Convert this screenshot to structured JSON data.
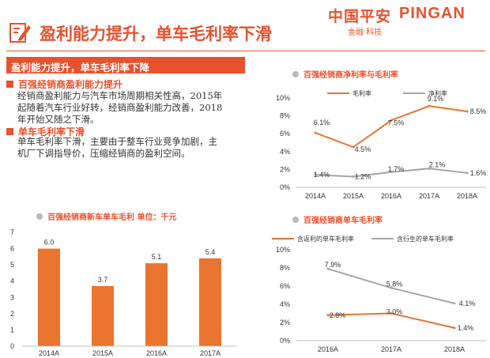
{
  "brand": {
    "cn": "中国平安",
    "en": "PINGAN",
    "sub": "金融·科技"
  },
  "header": {
    "title": "盈利能力提升，单车毛利率下滑"
  },
  "banner": {
    "label": "盈利能力提升，单车毛利率下降"
  },
  "sections": [
    {
      "heading": "百强经销商盈利能力提升",
      "lines": [
        "经销商盈利能力与汽车市场周期相关性高，2015年",
        "起随着汽车行业好转，经销商盈利能力改善，2018",
        "年开始又随之下滑。"
      ]
    },
    {
      "heading": "单车毛利率下滑",
      "lines": [
        "单车毛利率下滑，主要由于整车行业竞争加剧，主",
        "机厂下调指导价，压缩经销商的盈利空间。"
      ]
    }
  ],
  "chart_data": [
    {
      "type": "line",
      "title": "百强经销商净利率与毛利率",
      "x": [
        "2014A",
        "2015A",
        "2016A",
        "2017A",
        "2018A"
      ],
      "series": [
        {
          "name": "毛利率",
          "values": [
            6.1,
            4.5,
            7.5,
            9.1,
            8.5
          ],
          "color": "#e8742f"
        },
        {
          "name": "净利率",
          "values": [
            1.4,
            1.2,
            1.7,
            2.1,
            1.6
          ],
          "color": "#a6a6a6"
        }
      ],
      "labels": [
        [
          "6.1%",
          "4.5%",
          "7.5%",
          "9.1%",
          "8.5%"
        ],
        [
          "1.4%",
          "1.2%",
          "1.7%",
          "2.1%",
          "1.6%"
        ]
      ],
      "ylim": [
        0,
        10
      ],
      "yticks": [
        "0%",
        "2%",
        "4%",
        "6%",
        "8%",
        "10%"
      ]
    },
    {
      "type": "bar",
      "title": "百强经销商新车单车毛利 单位：千元",
      "categories": [
        "2014A",
        "2015A",
        "2016A",
        "2017A"
      ],
      "values": [
        6.0,
        3.7,
        5.1,
        5.4
      ],
      "labels": [
        "6.0",
        "3.7",
        "5.1",
        "5.4"
      ],
      "ylim": [
        0,
        7
      ],
      "yticks": [
        "0",
        "1",
        "2",
        "3",
        "4",
        "5",
        "6",
        "7"
      ],
      "color": "#e8742f"
    },
    {
      "type": "line",
      "title": "百强经销商单车毛利率",
      "x": [
        "2016A",
        "2017A",
        "2018A"
      ],
      "series": [
        {
          "name": "含返利的单车毛利率",
          "values": [
            2.8,
            3.0,
            1.4
          ],
          "color": "#e8742f"
        },
        {
          "name": "含衍生的单车毛利率",
          "values": [
            7.9,
            5.8,
            4.1
          ],
          "color": "#a6a6a6"
        }
      ],
      "labels": [
        [
          "2.8%",
          "3.0%",
          "1.4%"
        ],
        [
          "7.9%",
          "5.8%",
          "4.1%"
        ]
      ],
      "ylim": [
        0,
        10
      ],
      "yticks": [
        "0%",
        "2%",
        "4%",
        "6%",
        "8%",
        "10%"
      ]
    }
  ]
}
